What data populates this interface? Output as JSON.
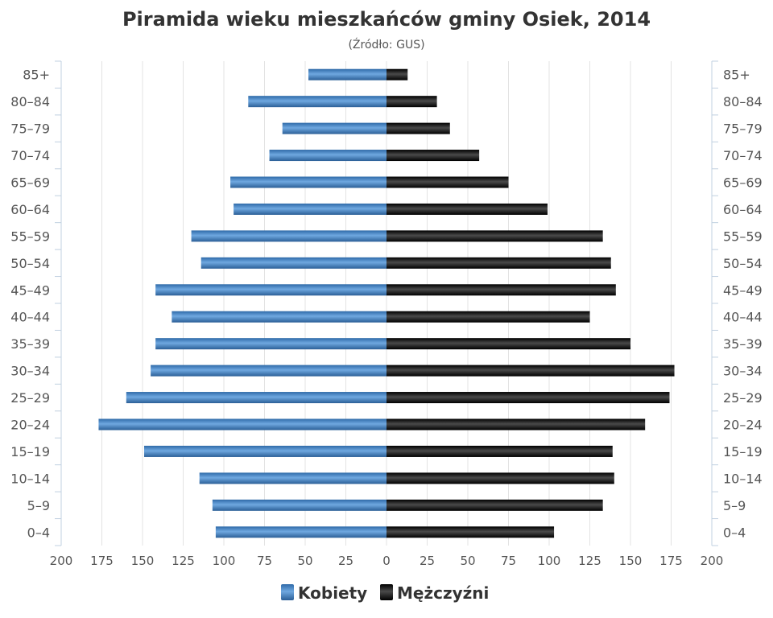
{
  "title": "Piramida wieku mieszkańców gminy Osiek, 2014",
  "subtitle": "(Źródło: GUS)",
  "colors": {
    "women": "#4a86c8",
    "men": "#1a1a1a",
    "grid": "#e3e3e3",
    "axis": "#c0d0e0"
  },
  "chart_data": {
    "type": "bar",
    "orientation": "horizontal-population-pyramid",
    "categories": [
      "85+",
      "80-84",
      "75-79",
      "70-74",
      "65-69",
      "60-64",
      "55-59",
      "50-54",
      "45-49",
      "40-44",
      "35-39",
      "30-34",
      "25-29",
      "20-24",
      "15-19",
      "10-14",
      "5-9",
      "0-4"
    ],
    "series": [
      {
        "name": "Kobiety",
        "side": "left",
        "values": [
          48,
          85,
          64,
          72,
          96,
          94,
          120,
          114,
          142,
          132,
          142,
          145,
          160,
          177,
          149,
          115,
          107,
          105
        ]
      },
      {
        "name": "Mężczyźni",
        "side": "right",
        "values": [
          13,
          31,
          39,
          57,
          75,
          99,
          133,
          138,
          141,
          125,
          150,
          177,
          174,
          159,
          139,
          140,
          133,
          103
        ]
      }
    ],
    "xlim": [
      -200,
      200
    ],
    "xticks": [
      "200",
      "175",
      "150",
      "125",
      "100",
      "75",
      "50",
      "25",
      "0",
      "25",
      "50",
      "75",
      "100",
      "125",
      "150",
      "175",
      "200"
    ],
    "grid": true,
    "legend_position": "bottom-center"
  }
}
